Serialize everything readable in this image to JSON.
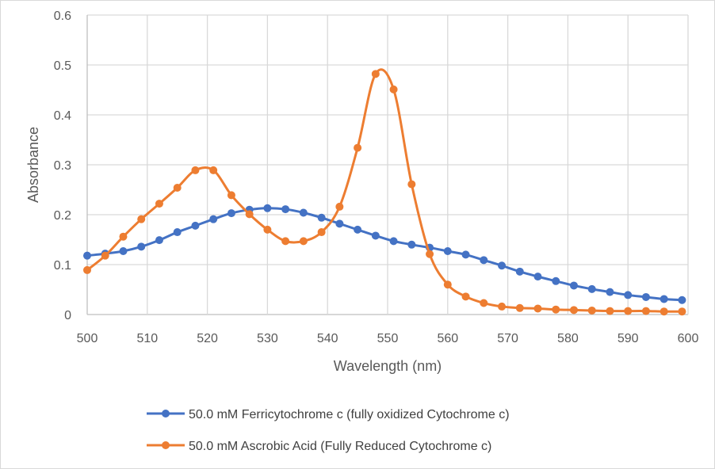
{
  "chart_data": {
    "type": "line",
    "title": "",
    "xlabel": "Wavelength (nm)",
    "ylabel": "Absorbance",
    "xlim": [
      500,
      600
    ],
    "ylim": [
      0,
      0.6
    ],
    "xticks": [
      "500",
      "510",
      "520",
      "530",
      "540",
      "550",
      "560",
      "570",
      "580",
      "590",
      "600"
    ],
    "yticks": [
      "0",
      "0.1",
      "0.2",
      "0.3",
      "0.4",
      "0.5",
      "0.6"
    ],
    "grid": true,
    "smooth": true,
    "markers": "circle",
    "legend_position": "bottom",
    "x": [
      500,
      503,
      506,
      509,
      512,
      515,
      518,
      521,
      524,
      527,
      530,
      533,
      536,
      539,
      542,
      545,
      548,
      551,
      554,
      557,
      560,
      563,
      566,
      569,
      572,
      575,
      578,
      581,
      584,
      587,
      590,
      593,
      596,
      599
    ],
    "series": [
      {
        "name": "50.0 mM Ferricytochrome c (fully oxidized Cytochrome c)",
        "color": "#4472C4",
        "values": [
          0.118,
          0.122,
          0.127,
          0.136,
          0.149,
          0.165,
          0.178,
          0.191,
          0.203,
          0.21,
          0.213,
          0.211,
          0.204,
          0.194,
          0.182,
          0.17,
          0.158,
          0.147,
          0.14,
          0.134,
          0.127,
          0.12,
          0.109,
          0.098,
          0.086,
          0.076,
          0.067,
          0.058,
          0.051,
          0.045,
          0.039,
          0.035,
          0.031,
          0.029
        ]
      },
      {
        "name": "50.0 mM Ascrobic Acid (Fully Reduced Cytochrome c)",
        "color": "#ED7D31",
        "values": [
          0.089,
          0.118,
          0.156,
          0.191,
          0.222,
          0.254,
          0.289,
          0.289,
          0.239,
          0.201,
          0.17,
          0.147,
          0.147,
          0.165,
          0.216,
          0.334,
          0.482,
          0.451,
          0.261,
          0.121,
          0.06,
          0.036,
          0.023,
          0.016,
          0.013,
          0.012,
          0.01,
          0.009,
          0.008,
          0.007,
          0.007,
          0.007,
          0.006,
          0.006
        ]
      }
    ]
  }
}
